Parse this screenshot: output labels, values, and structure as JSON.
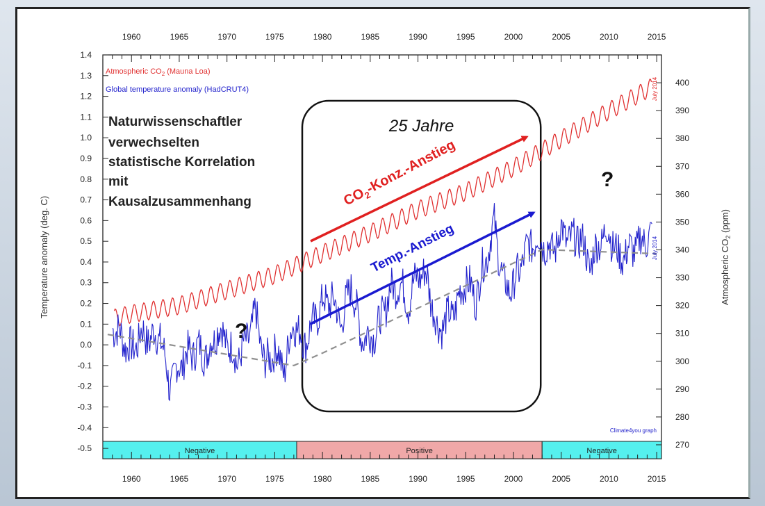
{
  "chart_data": {
    "type": "line",
    "title": "",
    "xlabel": "",
    "ylabel_left": "Temperature anomaly (deg. C)",
    "ylabel_right": "Atmospheric CO2 (ppm)",
    "x_range": [
      1957,
      2015.5
    ],
    "y_left_range": [
      -0.55,
      1.4
    ],
    "y_right_range": [
      265,
      410
    ],
    "x_ticks": [
      1960,
      1965,
      1970,
      1975,
      1980,
      1985,
      1990,
      1995,
      2000,
      2005,
      2010,
      2015
    ],
    "y_left_ticks": [
      -0.5,
      -0.4,
      -0.3,
      -0.2,
      -0.1,
      0.0,
      0.1,
      0.2,
      0.3,
      0.4,
      0.5,
      0.6,
      0.7,
      0.8,
      0.9,
      1.0,
      1.1,
      1.2,
      1.3,
      1.4
    ],
    "y_left_tick_labels": [
      "-0.5",
      "-0.4",
      "-0.3",
      "-0.2",
      "-0.1",
      "0.0",
      "0.1",
      "0.2",
      "0.3",
      "0.4",
      "0.5",
      "0.6",
      "0.7",
      "0.8",
      "0.9",
      "1.0",
      "1.1",
      "1.2",
      "1.3",
      "1.4"
    ],
    "y_right_ticks": [
      270,
      280,
      290,
      300,
      310,
      320,
      330,
      340,
      350,
      360,
      370,
      380,
      390,
      400
    ],
    "legend": {
      "co2_prefix": "Atmospheric CO",
      "co2_sub": "2",
      "co2_suffix": " (Mauna Loa)",
      "temp": "Global temperature anomaly (HadCRUT4)",
      "placement": "top-left"
    },
    "series": [
      {
        "name": "Atmospheric CO2 (Mauna Loa)",
        "axis": "right",
        "color": "#e03030",
        "x": [
          1958.2,
          1960,
          1965,
          1970,
          1975,
          1980,
          1985,
          1990,
          1995,
          2000,
          2005,
          2010,
          2014.5
        ],
        "values": [
          315.5,
          317,
          320,
          325.5,
          331,
          338.7,
          346,
          354.4,
          360.8,
          369.5,
          379.8,
          389.9,
          398.5
        ],
        "seasonal_amplitude_ppm": 3.2
      },
      {
        "name": "Global temperature anomaly (HadCRUT4)",
        "axis": "left",
        "color": "#2222cc",
        "x": [
          1958,
          1959,
          1960,
          1961,
          1962,
          1963,
          1964,
          1965,
          1966,
          1967,
          1968,
          1969,
          1970,
          1971,
          1972,
          1973,
          1974,
          1975,
          1976,
          1977,
          1978,
          1979,
          1980,
          1981,
          1982,
          1983,
          1984,
          1985,
          1986,
          1987,
          1988,
          1989,
          1990,
          1991,
          1992,
          1993,
          1994,
          1995,
          1996,
          1997,
          1998,
          1999,
          2000,
          2001,
          2002,
          2003,
          2004,
          2005,
          2006,
          2007,
          2008,
          2009,
          2010,
          2011,
          2012,
          2013,
          2014
        ],
        "values": [
          0.1,
          0.03,
          -0.03,
          0.05,
          0.03,
          0.05,
          -0.2,
          -0.1,
          -0.04,
          -0.02,
          -0.05,
          0.08,
          0.02,
          -0.08,
          0.01,
          0.15,
          -0.1,
          -0.02,
          -0.12,
          0.12,
          0.0,
          0.1,
          0.2,
          0.22,
          0.1,
          0.3,
          0.05,
          0.03,
          0.1,
          0.25,
          0.3,
          0.2,
          0.35,
          0.32,
          0.07,
          0.12,
          0.18,
          0.32,
          0.22,
          0.4,
          0.58,
          0.28,
          0.28,
          0.42,
          0.5,
          0.5,
          0.45,
          0.55,
          0.5,
          0.52,
          0.38,
          0.5,
          0.55,
          0.42,
          0.45,
          0.48,
          0.52
        ]
      },
      {
        "name": "",
        "style": "dashed",
        "axis": "left",
        "color": "#909090",
        "x": [
          1957.5,
          1977,
          1980,
          2003,
          2015
        ],
        "values": [
          0.05,
          -0.1,
          -0.04,
          0.46,
          0.44
        ]
      }
    ],
    "bands": [
      {
        "label": "Negative",
        "from": 1957,
        "to": 1977.3,
        "color": "#55f0ee"
      },
      {
        "label": "Positive",
        "from": 1977.3,
        "to": 2003,
        "color": "#f0a8a8"
      },
      {
        "label": "Negative",
        "from": 2003,
        "to": 2015.5,
        "color": "#55f0ee"
      }
    ],
    "annotations": {
      "statement": [
        "Naturwissenschaftler",
        "verwechselten",
        "statistische Korrelation",
        "mit",
        "Kausalzusammenhang"
      ],
      "period_label": "25 Jahre",
      "period_from": 1977.3,
      "period_to": 2003,
      "co2_arrow_prefix": "CO",
      "co2_arrow_sub": "2",
      "co2_arrow_suffix": "-Konz.-Anstieg",
      "temp_arrow": "Temp.-Anstieg",
      "question_mark": "?",
      "july_2014": "July 2014",
      "credit": "Climate4you graph"
    },
    "colors": {
      "co2": "#e03030",
      "temperature": "#2222cc",
      "trend": "#909090",
      "negative_band": "#55f0ee",
      "positive_band": "#f0a8a8"
    },
    "grid": false
  }
}
